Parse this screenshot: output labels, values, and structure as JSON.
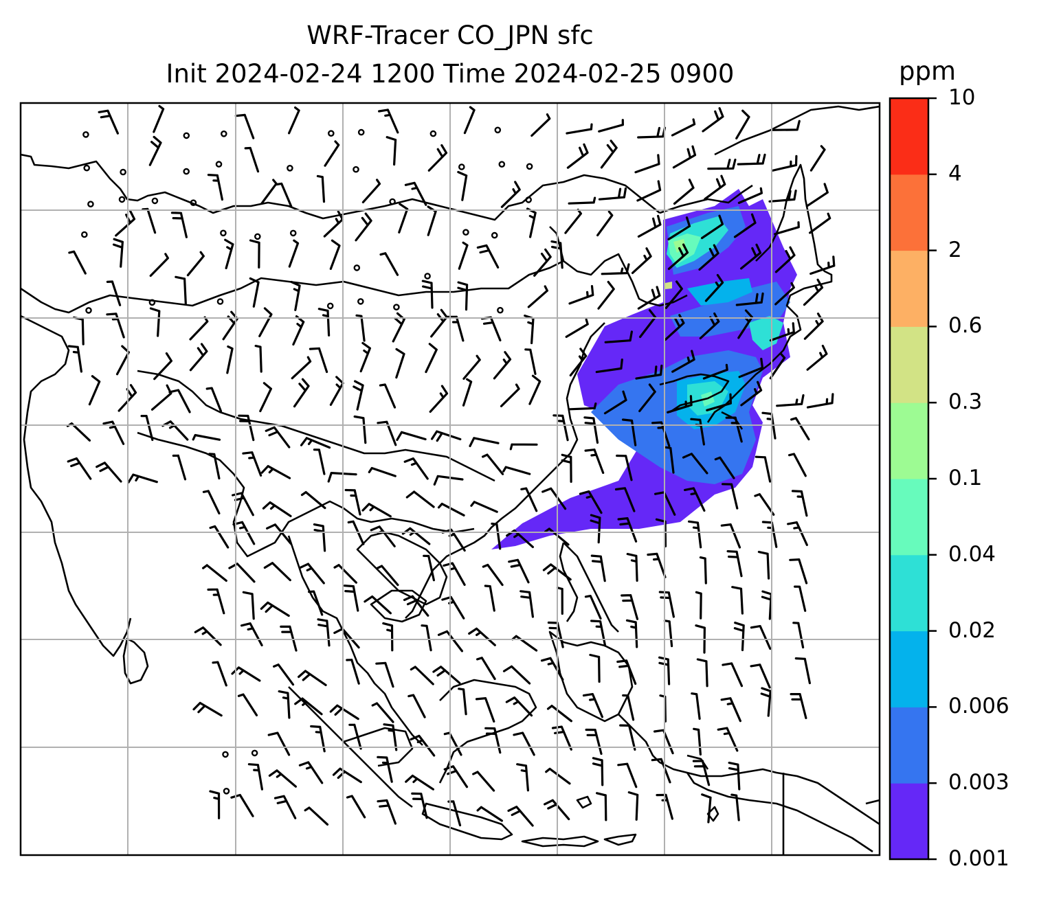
{
  "title": {
    "line1": "WRF-Tracer CO_JPN sfc",
    "line2": "Init 2024-02-24 1200 Time 2024-02-25 0900"
  },
  "colorbar": {
    "unit": "ppm",
    "levels": [
      "0.001",
      "0.003",
      "0.006",
      "0.02",
      "0.04",
      "0.1",
      "0.3",
      "0.6",
      "2",
      "4",
      "10"
    ],
    "colors": [
      "#6528f7",
      "#3575f0",
      "#04b2ec",
      "#2ee0d6",
      "#67fbbc",
      "#9dfb93",
      "#d2e385",
      "#fdb064",
      "#fc7139",
      "#fb2d17"
    ]
  },
  "map": {
    "gridlines": true,
    "wind_barbs": true
  }
}
